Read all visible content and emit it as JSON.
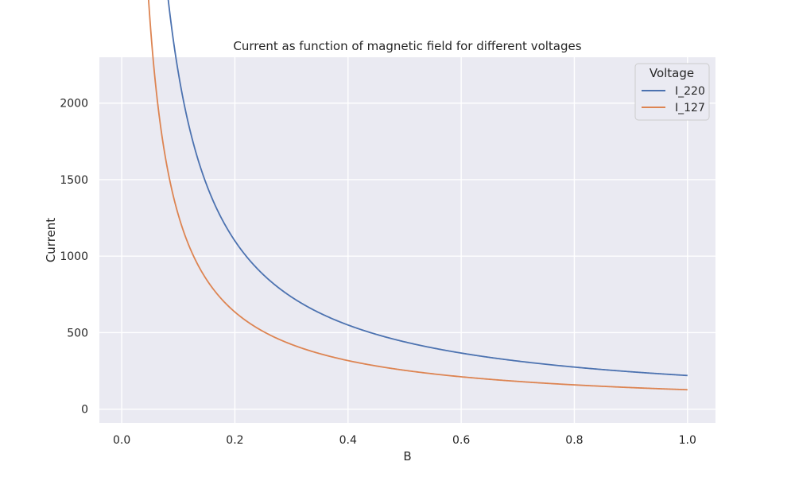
{
  "chart_data": {
    "type": "line",
    "title": "Current as function of magnetic field for different voltages",
    "xlabel": "B",
    "ylabel": "Current",
    "xlim": [
      -0.0395,
      1.0495
    ],
    "ylim": [
      -90,
      2300
    ],
    "xticks": [
      0.0,
      0.2,
      0.4,
      0.6,
      0.8,
      1.0
    ],
    "xtick_labels": [
      "0.0",
      "0.2",
      "0.4",
      "0.6",
      "0.8",
      "1.0"
    ],
    "yticks": [
      0,
      500,
      1000,
      1500,
      2000
    ],
    "ytick_labels": [
      "0",
      "500",
      "1000",
      "1500",
      "2000"
    ],
    "grid": true,
    "legend": {
      "title": "Voltage",
      "placement": "top-right"
    },
    "x_range": [
      0.01,
      1.0
    ],
    "series": [
      {
        "name": "I_220",
        "formula": "220 / B",
        "color": "#4c72b0"
      },
      {
        "name": "I_127",
        "formula": "127 / B",
        "color": "#dd8452"
      }
    ]
  },
  "colors": {
    "plot_background": "#eaeaf2",
    "grid": "#ffffff"
  }
}
